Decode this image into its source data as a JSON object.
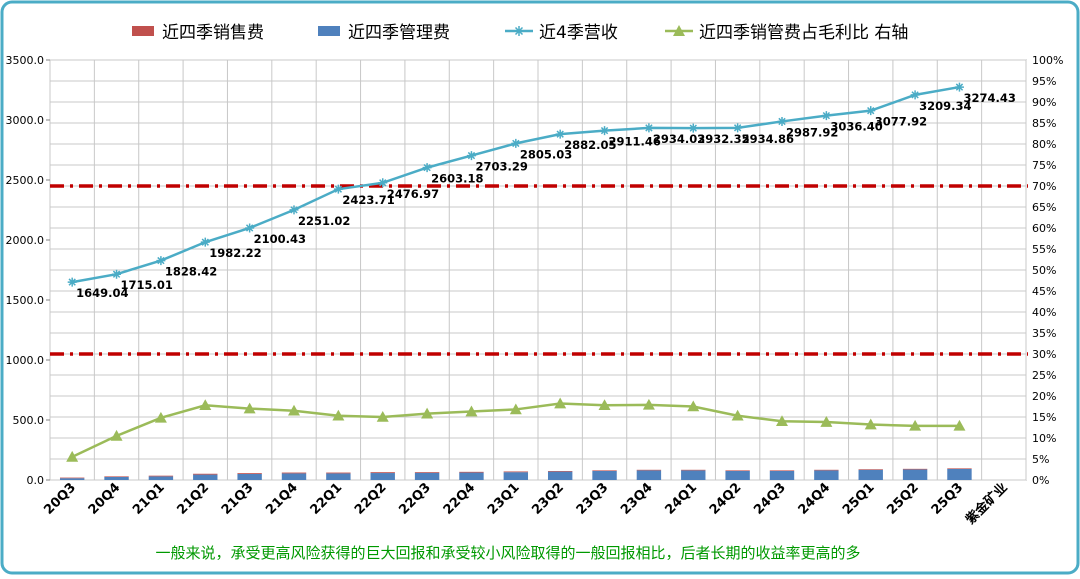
{
  "chart_data": {
    "type": "bar",
    "categories": [
      "20Q3",
      "20Q4",
      "21Q1",
      "21Q2",
      "21Q3",
      "21Q4",
      "22Q1",
      "22Q2",
      "22Q3",
      "22Q4",
      "23Q1",
      "23Q2",
      "23Q3",
      "23Q4",
      "24Q1",
      "24Q2",
      "24Q3",
      "24Q4",
      "25Q1",
      "25Q2",
      "25Q3",
      "紫金矿业"
    ],
    "series": [
      {
        "name": "近四季销售费",
        "kind": "stacked-bar",
        "axis": "left",
        "color": "#c0504d",
        "values": [
          5,
          5,
          6,
          7,
          7,
          7,
          7,
          7,
          6,
          6,
          6,
          5,
          5,
          5,
          5,
          5,
          5,
          5,
          5,
          5,
          5,
          null
        ]
      },
      {
        "name": "近四季管理费",
        "kind": "stacked-bar",
        "axis": "left",
        "color": "#4f81bd",
        "values": [
          15,
          25,
          30,
          45,
          50,
          55,
          55,
          58,
          60,
          62,
          65,
          70,
          75,
          80,
          80,
          75,
          75,
          80,
          85,
          88,
          92,
          null
        ]
      },
      {
        "name": "近4季营收",
        "kind": "line",
        "axis": "left",
        "color": "#4bacc6",
        "marker": "asterisk",
        "values": [
          1649.04,
          1715.01,
          1828.42,
          1982.22,
          2100.43,
          2251.02,
          2423.71,
          2476.97,
          2603.18,
          2703.29,
          2805.03,
          2882.05,
          2911.46,
          2934.03,
          2932.35,
          2934.86,
          2987.92,
          3036.4,
          3077.92,
          3209.34,
          3274.43,
          null
        ],
        "labels": [
          "1649.04",
          "1715.01",
          "1828.42",
          "1982.22",
          "2100.43",
          "2251.02",
          "2423.71",
          "2476.97",
          "2603.18",
          "2703.29",
          "2805.03",
          "2882.05",
          "2911.46",
          "2934.03",
          "2932.35",
          "2934.86",
          "2987.92",
          "3036.40",
          "3077.92",
          "3209.34",
          "3274.43",
          ""
        ]
      },
      {
        "name": "近四季销管费占毛利比  右轴",
        "kind": "line",
        "axis": "right",
        "color": "#9bbb59",
        "marker": "triangle",
        "values": [
          5.5,
          10.5,
          14.8,
          17.8,
          17.0,
          16.5,
          15.3,
          15.0,
          15.8,
          16.3,
          16.8,
          18.2,
          17.8,
          17.9,
          17.5,
          15.3,
          14.0,
          13.8,
          13.2,
          12.9,
          12.9,
          null
        ]
      }
    ],
    "reference_lines": [
      {
        "axis": "right",
        "value": 70,
        "color": "#c00000",
        "style": "dash-dot"
      },
      {
        "axis": "right",
        "value": 30,
        "color": "#c00000",
        "style": "dash-dot"
      }
    ],
    "ylim": [
      0,
      3500
    ],
    "y_ticks": [
      "0.0",
      "500.0",
      "1000.0",
      "1500.0",
      "2000.0",
      "2500.0",
      "3000.0",
      "3500.0"
    ],
    "y2lim": [
      0,
      100
    ],
    "y2_ticks": [
      "0%",
      "5%",
      "10%",
      "15%",
      "20%",
      "25%",
      "30%",
      "35%",
      "40%",
      "45%",
      "50%",
      "55%",
      "60%",
      "65%",
      "70%",
      "75%",
      "80%",
      "85%",
      "90%",
      "95%",
      "100%"
    ],
    "grid": true,
    "legend_position": "top",
    "note": "一般来说，承受更高风险获得的巨大回报和承受较小风险取得的一般回报相比，后者长期的收益率更高的多",
    "note_color": "#009900",
    "border_color": "#4bacc6"
  }
}
